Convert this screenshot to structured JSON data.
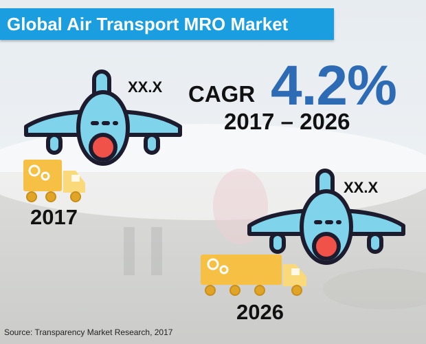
{
  "title": "Global Air Transport MRO Market",
  "cagr": {
    "label": "CAGR",
    "value": "4.2%",
    "period": "2017 – 2026"
  },
  "chart_data": {
    "type": "bar",
    "title": "Global Air Transport MRO Market",
    "categories": [
      "2017",
      "2026"
    ],
    "value_labels": [
      "XX.X",
      "XX.X"
    ],
    "annotation": "CAGR 4.2% 2017 – 2026"
  },
  "source": "Source: Transparency Market Research, 2017",
  "icons": [
    "airplane-icon",
    "truck-icon"
  ],
  "colors": {
    "title_bar": "#1a9ee0",
    "cagr_value": "#2e6bb5",
    "plane_body": "#7fd3ea",
    "plane_outline": "#1c1c2e",
    "plane_nose": "#f0524a",
    "truck_cargo": "#f5c044",
    "truck_cab": "#f9d97a"
  }
}
